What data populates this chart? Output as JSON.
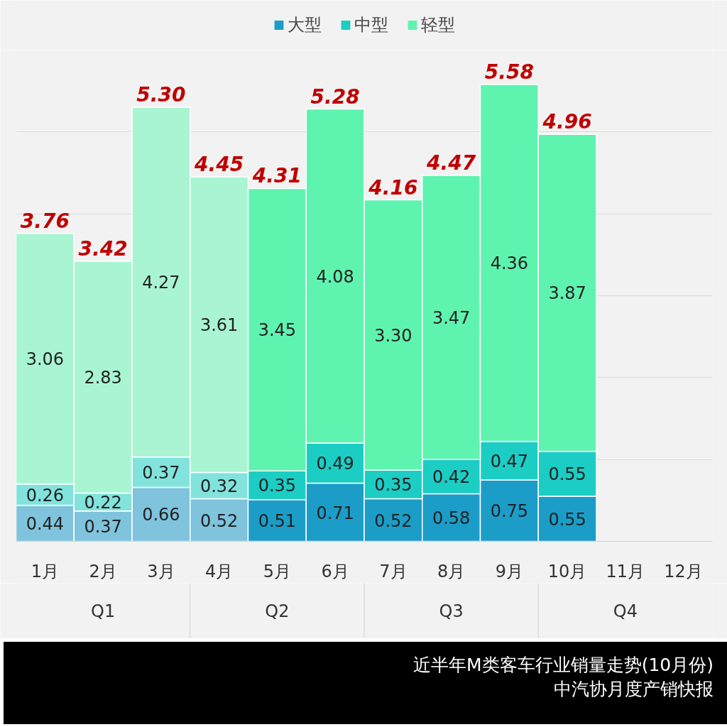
{
  "chart_data": {
    "type": "bar",
    "stacked": true,
    "title": "近半年M类客车行业销量走势(10月份)",
    "subtitle": "中汽协月度产销快报",
    "categories": [
      "1月",
      "2月",
      "3月",
      "4月",
      "5月",
      "6月",
      "7月",
      "8月",
      "9月",
      "10月",
      "11月",
      "12月"
    ],
    "series": [
      {
        "name": "大型",
        "color": "#1b9dc8",
        "colors": [
          "#7fc3dc",
          "#7fc3dc",
          "#7fc3dc",
          "#7fc3dc",
          "#1b9dc8",
          "#1b9dc8",
          "#1b9dc8",
          "#1b9dc8",
          "#1b9dc8",
          "#1b9dc8",
          "#1b9dc8",
          "#1b9dc8"
        ],
        "values": [
          0.44,
          0.37,
          0.66,
          0.52,
          0.51,
          0.71,
          0.52,
          0.58,
          0.75,
          0.55,
          null,
          null
        ],
        "value_labels": [
          "0.44",
          "0.37",
          "0.66",
          "0.52",
          "0.51",
          "0.71",
          "0.52",
          "0.58",
          "0.75",
          "0.55",
          null,
          null
        ]
      },
      {
        "name": "中型",
        "color": "#1ccdc4",
        "colors": [
          "#82e3dd",
          "#82e3dd",
          "#82e3dd",
          "#82e3dd",
          "#1ccdc4",
          "#1ccdc4",
          "#1ccdc4",
          "#1ccdc4",
          "#1ccdc4",
          "#1ccdc4",
          "#1ccdc4",
          "#1ccdc4"
        ],
        "values": [
          0.26,
          0.22,
          0.37,
          0.32,
          0.35,
          0.49,
          0.35,
          0.42,
          0.47,
          0.55,
          null,
          null
        ],
        "value_labels": [
          "0.26",
          "0.22",
          "0.37",
          "0.32",
          "0.35",
          "0.49",
          "0.35",
          "0.42",
          "0.47",
          "0.55",
          null,
          null
        ]
      },
      {
        "name": "轻型",
        "color": "#5ff3b0",
        "colors": [
          "#a9f5d3",
          "#a9f5d3",
          "#a9f5d3",
          "#a9f5d3",
          "#5ff3b0",
          "#5ff3b0",
          "#5ff3b0",
          "#5ff3b0",
          "#5ff3b0",
          "#5ff3b0",
          "#5ff3b0",
          "#5ff3b0"
        ],
        "values": [
          3.06,
          2.83,
          4.27,
          3.61,
          3.45,
          4.08,
          3.3,
          3.47,
          4.36,
          3.87,
          null,
          null
        ],
        "value_labels": [
          "3.06",
          "2.83",
          "4.27",
          "3.61",
          "3.45",
          "4.08",
          "3.30",
          "3.47",
          "4.36",
          "3.87",
          null,
          null
        ]
      }
    ],
    "totals": [
      "3.76",
      "3.42",
      "5.30",
      "4.45",
      "4.31",
      "5.28",
      "4.16",
      "4.47",
      "5.58",
      "4.96",
      null,
      null
    ],
    "annotations": [
      "Q1",
      "Q2",
      "Q3",
      "Q4"
    ],
    "ylim": [
      0,
      6
    ],
    "yticks": [
      {
        "value": 0,
        "label": null
      },
      {
        "value": 1,
        "label": null
      },
      {
        "value": 2,
        "label": null
      },
      {
        "value": 3,
        "label": null
      },
      {
        "value": 4,
        "label": null
      },
      {
        "value": 5,
        "label": null
      },
      {
        "value": 6,
        "label": null
      }
    ],
    "tick_labels": "x",
    "grid": "y",
    "legend": "top"
  }
}
